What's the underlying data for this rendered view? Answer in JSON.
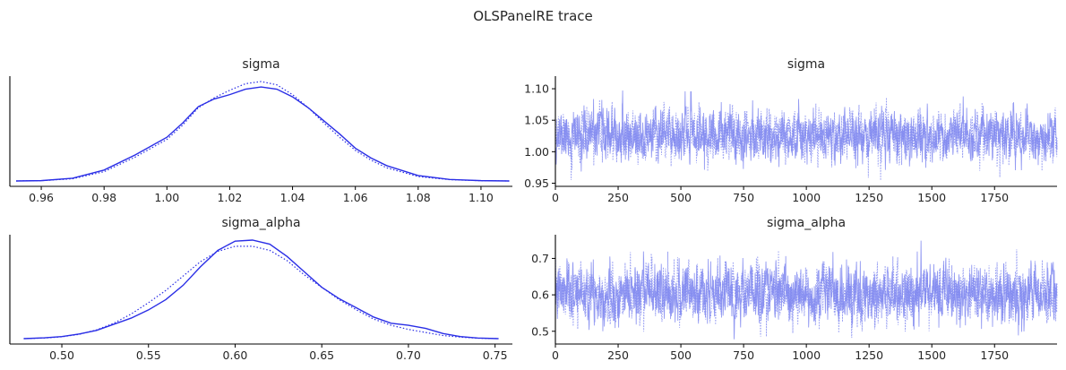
{
  "chart": {
    "suptitle": "OLSPanelRE trace",
    "colors": {
      "kde_line": "#2a2ee6",
      "trace_line": "#8088f0",
      "axis": "#000000",
      "text": "#262626"
    }
  },
  "chart_data": [
    {
      "type": "line",
      "title": "sigma",
      "kind": "kde",
      "xlim": [
        0.95,
        1.11
      ],
      "xticks": [
        "0.96",
        "0.98",
        "1.00",
        "1.02",
        "1.04",
        "1.06",
        "1.08",
        "1.10"
      ],
      "xtick_values": [
        0.96,
        0.98,
        1.0,
        1.02,
        1.04,
        1.06,
        1.08,
        1.1
      ],
      "ytick_labels_shown": false,
      "series": [
        {
          "style": "solid",
          "x": [
            0.952,
            0.96,
            0.97,
            0.98,
            0.99,
            1.0,
            1.005,
            1.01,
            1.015,
            1.02,
            1.025,
            1.03,
            1.035,
            1.04,
            1.045,
            1.05,
            1.055,
            1.06,
            1.065,
            1.07,
            1.08,
            1.09,
            1.1,
            1.109
          ],
          "y": [
            0.0,
            0.003,
            0.025,
            0.1,
            0.24,
            0.4,
            0.53,
            0.68,
            0.75,
            0.79,
            0.84,
            0.86,
            0.84,
            0.77,
            0.67,
            0.55,
            0.43,
            0.3,
            0.21,
            0.14,
            0.05,
            0.014,
            0.003,
            0.0
          ]
        },
        {
          "style": "dotted",
          "x": [
            0.952,
            0.96,
            0.97,
            0.98,
            0.99,
            1.0,
            1.005,
            1.01,
            1.015,
            1.02,
            1.025,
            1.03,
            1.035,
            1.04,
            1.045,
            1.05,
            1.055,
            1.06,
            1.065,
            1.07,
            1.08,
            1.09,
            1.1,
            1.109
          ],
          "y": [
            0.0,
            0.003,
            0.02,
            0.085,
            0.22,
            0.38,
            0.51,
            0.67,
            0.76,
            0.83,
            0.89,
            0.91,
            0.88,
            0.79,
            0.67,
            0.53,
            0.4,
            0.28,
            0.19,
            0.12,
            0.04,
            0.012,
            0.002,
            0.0
          ]
        }
      ]
    },
    {
      "type": "line",
      "title": "sigma",
      "kind": "trace",
      "xlim": [
        0,
        1999
      ],
      "ylim": [
        0.945,
        1.12
      ],
      "xticks": [
        "0",
        "250",
        "500",
        "750",
        "1000",
        "1250",
        "1500",
        "1750"
      ],
      "xtick_values": [
        0,
        250,
        500,
        750,
        1000,
        1250,
        1500,
        1750
      ],
      "yticks": [
        "0.95",
        "1.00",
        "1.05",
        "1.10"
      ],
      "ytick_values": [
        0.95,
        1.0,
        1.05,
        1.1
      ],
      "draws": 2000,
      "mean": 1.026,
      "sd": 0.019,
      "min": 0.951,
      "max": 1.108,
      "series": [
        {
          "style": "solid",
          "seed": 11
        },
        {
          "style": "dotted",
          "seed": 29
        }
      ]
    },
    {
      "type": "line",
      "title": "sigma_alpha",
      "kind": "kde",
      "xlim": [
        0.47,
        0.76
      ],
      "xticks": [
        "0.50",
        "0.55",
        "0.60",
        "0.65",
        "0.70",
        "0.75"
      ],
      "xtick_values": [
        0.5,
        0.55,
        0.6,
        0.65,
        0.7,
        0.75
      ],
      "ytick_labels_shown": false,
      "series": [
        {
          "style": "solid",
          "x": [
            0.478,
            0.49,
            0.5,
            0.51,
            0.52,
            0.53,
            0.54,
            0.55,
            0.56,
            0.57,
            0.58,
            0.59,
            0.6,
            0.61,
            0.62,
            0.63,
            0.64,
            0.65,
            0.66,
            0.67,
            0.68,
            0.69,
            0.7,
            0.71,
            0.72,
            0.73,
            0.74,
            0.752
          ],
          "y": [
            0.0,
            0.008,
            0.02,
            0.045,
            0.08,
            0.14,
            0.2,
            0.28,
            0.38,
            0.52,
            0.7,
            0.86,
            0.95,
            0.96,
            0.92,
            0.8,
            0.65,
            0.5,
            0.39,
            0.3,
            0.21,
            0.15,
            0.13,
            0.1,
            0.05,
            0.02,
            0.006,
            0.0
          ]
        },
        {
          "style": "dotted",
          "x": [
            0.478,
            0.49,
            0.5,
            0.51,
            0.52,
            0.53,
            0.54,
            0.55,
            0.56,
            0.57,
            0.58,
            0.59,
            0.6,
            0.61,
            0.62,
            0.63,
            0.64,
            0.65,
            0.66,
            0.67,
            0.68,
            0.69,
            0.7,
            0.71,
            0.72,
            0.73,
            0.74,
            0.752
          ],
          "y": [
            0.0,
            0.006,
            0.018,
            0.042,
            0.085,
            0.15,
            0.24,
            0.35,
            0.47,
            0.61,
            0.75,
            0.85,
            0.9,
            0.9,
            0.86,
            0.76,
            0.62,
            0.5,
            0.38,
            0.28,
            0.19,
            0.13,
            0.09,
            0.06,
            0.03,
            0.015,
            0.004,
            0.0
          ]
        }
      ]
    },
    {
      "type": "line",
      "title": "sigma_alpha",
      "kind": "trace",
      "xlim": [
        0,
        1999
      ],
      "ylim": [
        0.465,
        0.765
      ],
      "xticks": [
        "0",
        "250",
        "500",
        "750",
        "1000",
        "1250",
        "1500",
        "1750"
      ],
      "xtick_values": [
        0,
        250,
        500,
        750,
        1000,
        1250,
        1500,
        1750
      ],
      "yticks": [
        "0.5",
        "0.6",
        "0.7"
      ],
      "ytick_values": [
        0.5,
        0.6,
        0.7
      ],
      "draws": 2000,
      "mean": 0.605,
      "sd": 0.037,
      "min": 0.478,
      "max": 0.752,
      "series": [
        {
          "style": "solid",
          "seed": 7
        },
        {
          "style": "dotted",
          "seed": 53
        }
      ]
    }
  ]
}
